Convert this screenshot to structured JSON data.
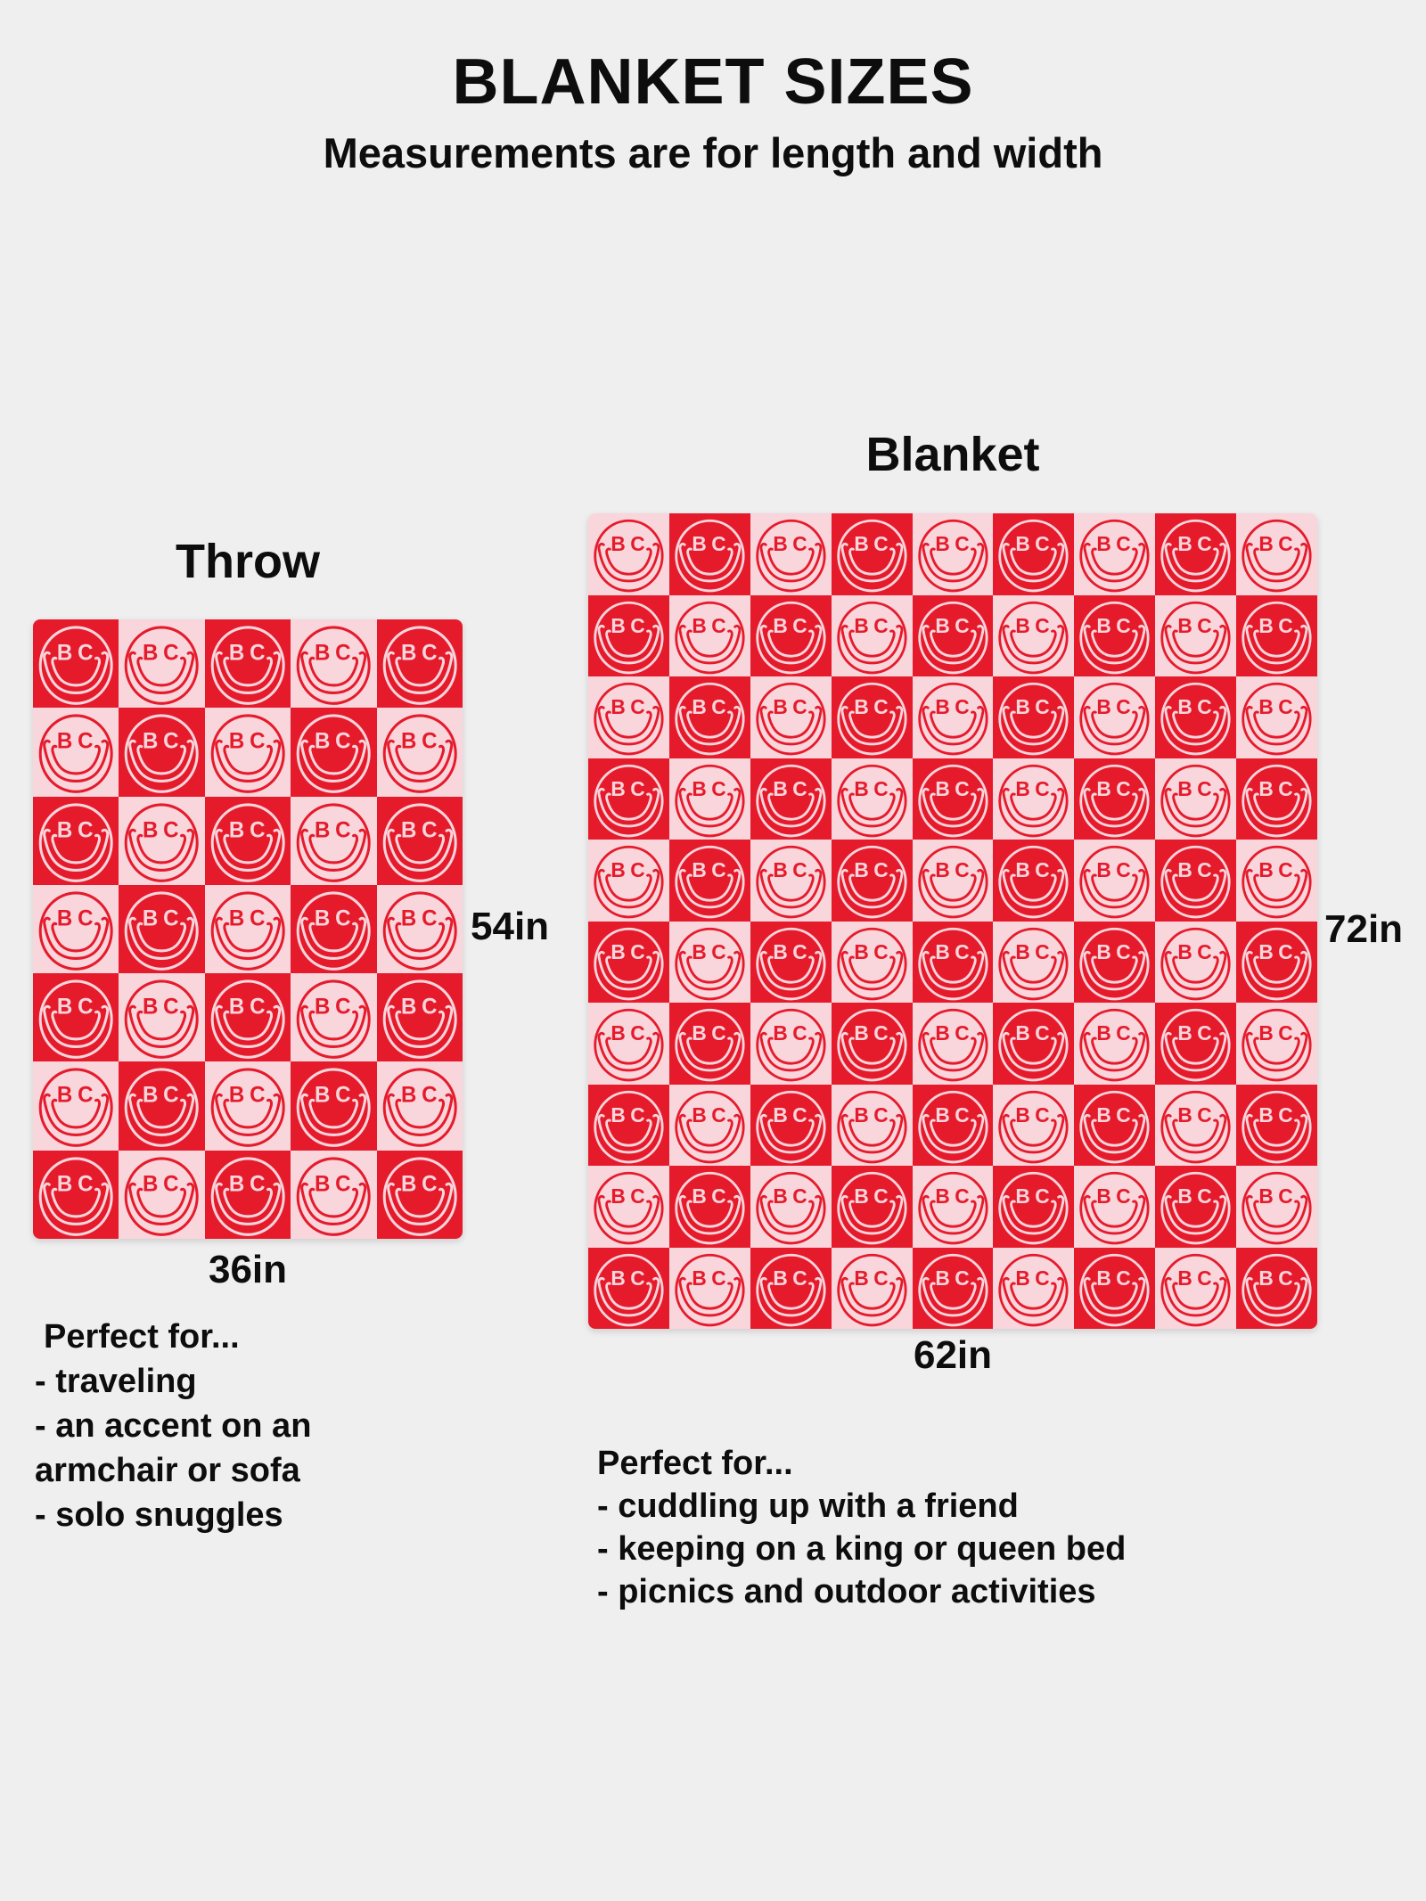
{
  "header": {
    "title": "BLANKET SIZES",
    "subtitle": "Measurements are for length and width"
  },
  "colors": {
    "background": "#f0eff0",
    "red": "#e51b2c",
    "pink": "#f9d5dc",
    "text": "#0d0d0d"
  },
  "face": {
    "monogram": "BC"
  },
  "throw": {
    "label": "Throw",
    "length_label": "54in",
    "width_label": "36in",
    "grid": {
      "columns": 5,
      "rows": 7,
      "first_cell": "red"
    },
    "perfect_for": {
      "heading": "Perfect for...",
      "lines": [
        "- traveling",
        "- an accent on an",
        "armchair or sofa",
        "- solo snuggles"
      ]
    }
  },
  "blanket": {
    "label": "Blanket",
    "length_label": "72in",
    "width_label": "62in",
    "grid": {
      "columns": 9,
      "rows": 10,
      "first_cell": "pink"
    },
    "perfect_for": {
      "heading": "Perfect for...",
      "lines": [
        "- cuddling up with a friend",
        "- keeping on a king or queen bed",
        "- picnics and outdoor activities"
      ]
    }
  }
}
